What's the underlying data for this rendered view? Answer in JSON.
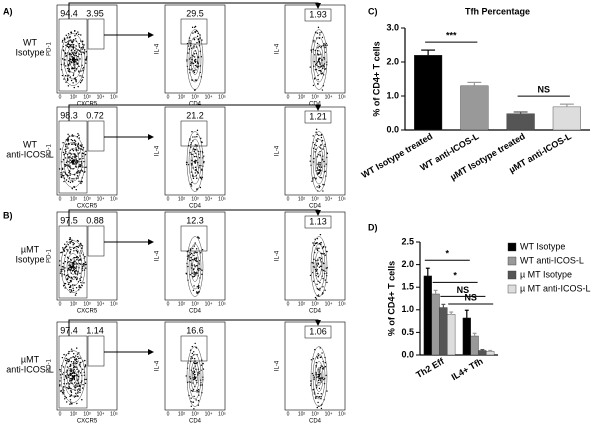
{
  "flow": {
    "panel_labels": [
      "A)",
      "B)"
    ],
    "axes": {
      "pd1": "PD-1",
      "cxcr5": "CXCR5",
      "il4": "IL-4",
      "cd4": "CD4"
    },
    "ticks": [
      "0",
      "10²",
      "10³",
      "10⁴",
      "10⁵"
    ],
    "rows": [
      {
        "label": [
          "WT",
          "Isotype"
        ],
        "gate": [
          "94.4",
          "3.95"
        ],
        "il4": [
          "29.5",
          "1.93"
        ]
      },
      {
        "label": [
          "WT",
          "anti-ICOS-L"
        ],
        "gate": [
          "98.3",
          "0.72"
        ],
        "il4": [
          "21.2",
          "1.21"
        ]
      },
      {
        "label": [
          "µMT",
          "Isotype"
        ],
        "gate": [
          "97.5",
          "0.88"
        ],
        "il4": [
          "12.3",
          "1.13"
        ]
      },
      {
        "label": [
          "µMT",
          "anti-ICOS-L"
        ],
        "gate": [
          "97.4",
          "1.14"
        ],
        "il4": [
          "16.6",
          "1.06"
        ]
      }
    ]
  },
  "chart_data": [
    {
      "type": "bar",
      "panel": "C)",
      "title": "Tfh Percentage",
      "y_label": "% of CD4+ T cells",
      "categories": [
        "WT Isotype treated",
        "WT anti-ICOS-L",
        "µMT Isotype treated",
        "µMT anti-ICOS-L"
      ],
      "values": [
        2.2,
        1.3,
        0.48,
        0.68
      ],
      "errors": [
        0.15,
        0.1,
        0.05,
        0.08
      ],
      "colors": [
        "#000000",
        "#999999",
        "#555555",
        "#dddddd"
      ],
      "ylim": [
        0,
        3
      ],
      "yticks": [
        {
          "value": 0,
          "label": "0.0"
        },
        {
          "value": 1,
          "label": "1.0"
        },
        {
          "value": 2,
          "label": "2.0"
        },
        {
          "value": 3,
          "label": "3.0"
        }
      ],
      "annotations": [
        "***",
        "NS"
      ]
    },
    {
      "type": "grouped_bar",
      "panel": "D)",
      "y_label": "% of CD4+ T cells",
      "categories": [
        "Th2 Eff",
        "IL4+ Tfh"
      ],
      "series": [
        {
          "name": "WT Isotype",
          "color": "#000000",
          "values": [
            1.75,
            0.82
          ],
          "errors": [
            0.17,
            0.17
          ]
        },
        {
          "name": "WT anti-ICOS-L",
          "color": "#999999",
          "values": [
            1.35,
            0.42
          ],
          "errors": [
            0.08,
            0.06
          ]
        },
        {
          "name": "µ MT Isotype",
          "color": "#555555",
          "values": [
            1.05,
            0.1
          ],
          "errors": [
            0.07,
            0.02
          ]
        },
        {
          "name": "µ MT anti-ICOS-L",
          "color": "#dddddd",
          "values": [
            0.9,
            0.08
          ],
          "errors": [
            0.05,
            0.02
          ]
        }
      ],
      "ylim": [
        0,
        2.5
      ],
      "yticks": [
        {
          "value": 0,
          "label": "0.0"
        },
        {
          "value": 0.5,
          "label": "0.5"
        },
        {
          "value": 1,
          "label": "1.0"
        },
        {
          "value": 1.5,
          "label": "1.5"
        },
        {
          "value": 2,
          "label": "2.0"
        },
        {
          "value": 2.5,
          "label": "2.5"
        }
      ],
      "legend": "right",
      "annotations": [
        "*",
        "NS",
        "*",
        "NS"
      ]
    }
  ]
}
